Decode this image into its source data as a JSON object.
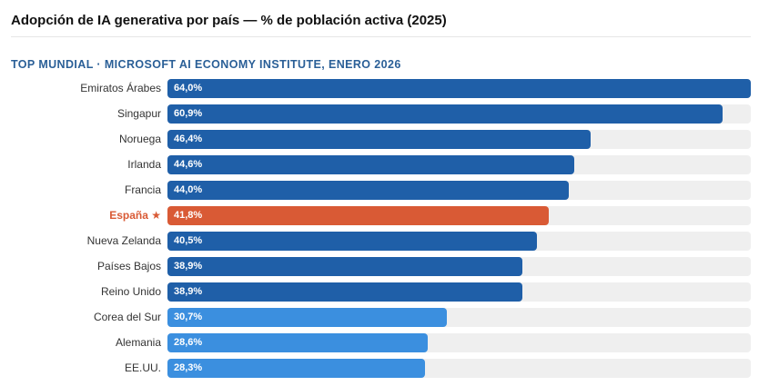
{
  "header": {
    "title": "Adopción de IA generativa por país — % de población activa (2025)",
    "subtitle": "TOP MUNDIAL · MICROSOFT AI ECONOMY INSTITUTE, ENERO 2026"
  },
  "colors": {
    "dark_blue": "#1f5fa8",
    "light_blue": "#3b8fdf",
    "highlight": "#d95a35",
    "track": "#efefef"
  },
  "chart_data": {
    "type": "bar",
    "orientation": "horizontal",
    "title": "Adopción de IA generativa por país — % de población activa (2025)",
    "subtitle": "TOP MUNDIAL · MICROSOFT AI ECONOMY INSTITUTE, ENERO 2026",
    "xlim": [
      0,
      64
    ],
    "grid": false,
    "categories": [
      "Emiratos Árabes",
      "Singapur",
      "Noruega",
      "Irlanda",
      "Francia",
      "España ★",
      "Nueva Zelanda",
      "Países Bajos",
      "Reino Unido",
      "Corea del Sur",
      "Alemania",
      "EE.UU."
    ],
    "values": [
      64.0,
      60.9,
      46.4,
      44.6,
      44.0,
      41.8,
      40.5,
      38.9,
      38.9,
      30.7,
      28.6,
      28.3
    ],
    "value_labels": [
      "64,0%",
      "60,9%",
      "46,4%",
      "44,6%",
      "44,0%",
      "41,8%",
      "40,5%",
      "38,9%",
      "38,9%",
      "30,7%",
      "28,6%",
      "28,3%"
    ],
    "bar_colors": [
      "#1f5fa8",
      "#1f5fa8",
      "#1f5fa8",
      "#1f5fa8",
      "#1f5fa8",
      "#d95a35",
      "#1f5fa8",
      "#1f5fa8",
      "#1f5fa8",
      "#3b8fdf",
      "#3b8fdf",
      "#3b8fdf"
    ],
    "highlighted_category": "España ★"
  }
}
